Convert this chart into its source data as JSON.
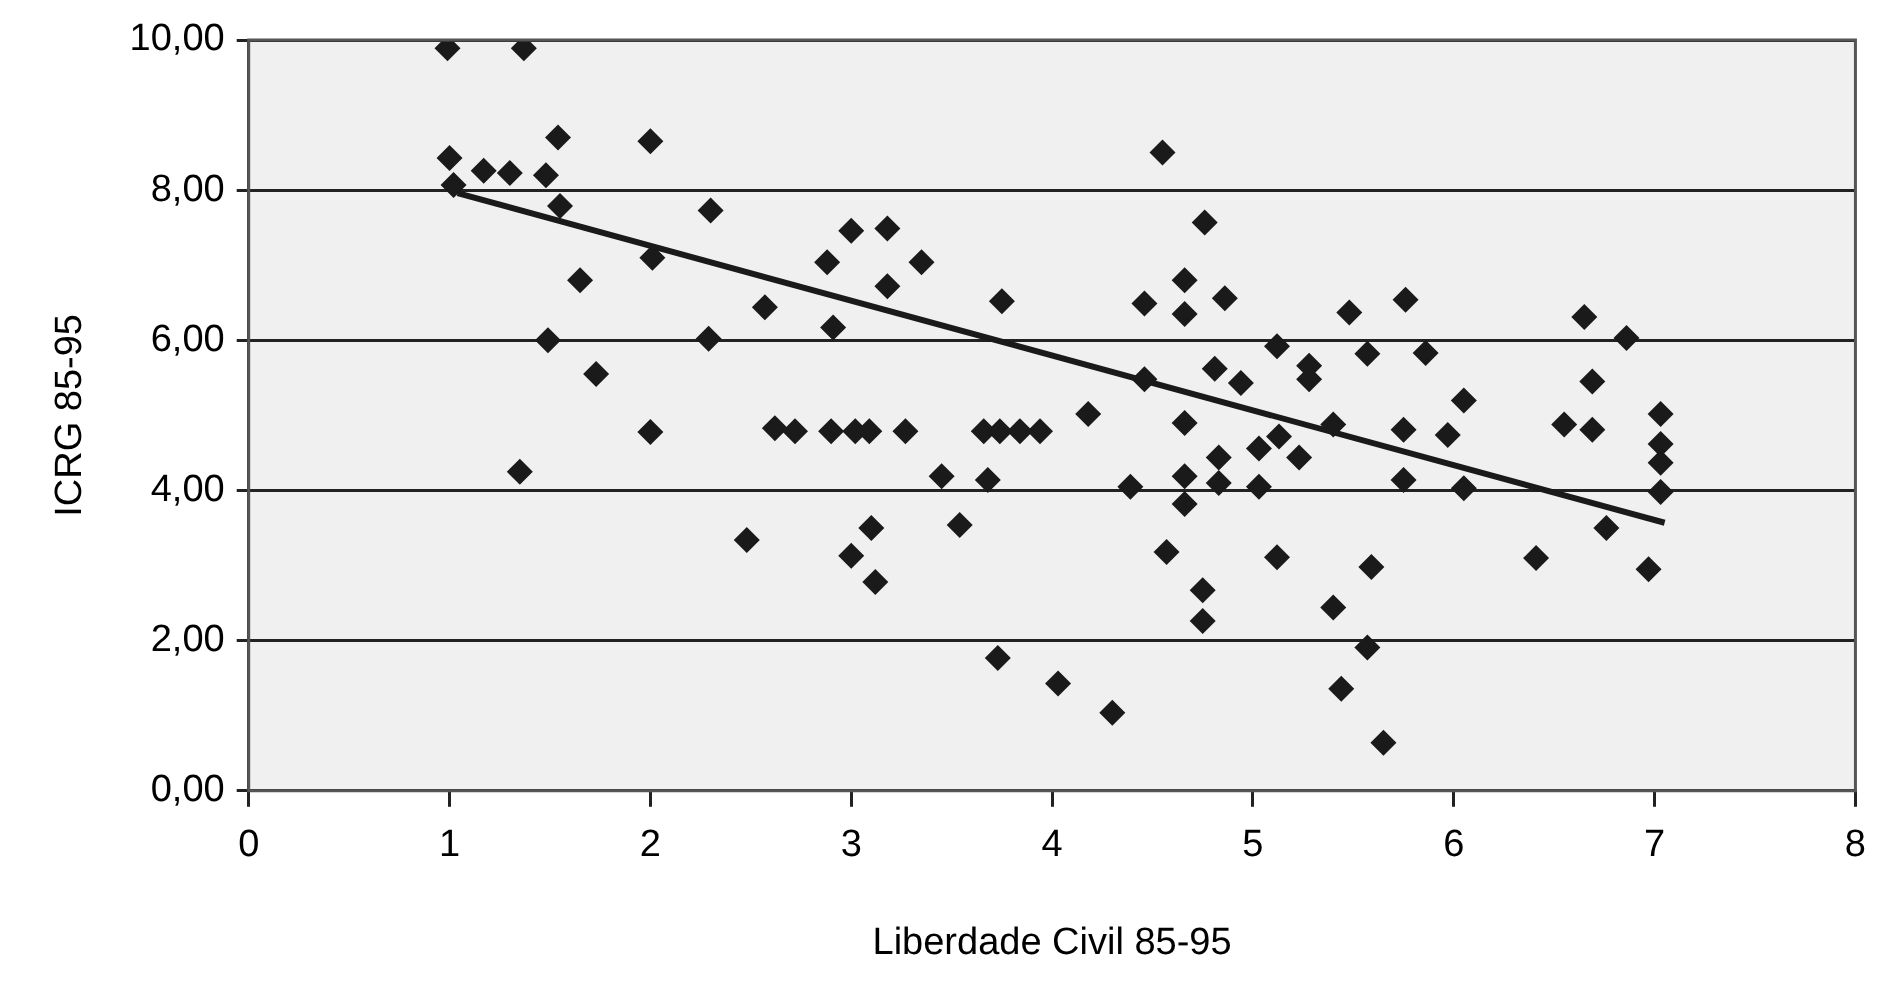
{
  "chart_data": {
    "type": "scatter",
    "xlabel": "Liberdade Civil 85-95",
    "ylabel": "ICRG 85-95",
    "xlim": [
      0,
      8
    ],
    "xticks": [
      0,
      1,
      2,
      3,
      4,
      5,
      6,
      7,
      8
    ],
    "ylim": [
      0,
      10
    ],
    "yticks": [
      {
        "value": 0,
        "label": "0,00"
      },
      {
        "value": 2,
        "label": "2,00"
      },
      {
        "value": 4,
        "label": "4,00"
      },
      {
        "value": 6,
        "label": "6,00"
      },
      {
        "value": 8,
        "label": "8,00"
      },
      {
        "value": 10,
        "label": "10,00"
      }
    ],
    "grid": "y",
    "legend": false,
    "series": [
      {
        "marker": "diamond",
        "color": "#1a1a1a",
        "x": [
          0.99,
          1.37,
          1.54,
          2.0,
          1.0,
          1.17,
          1.3,
          1.48,
          1.02,
          1.55,
          2.3,
          2.01,
          1.65,
          2.57,
          1.49,
          2.29,
          1.73,
          2.0,
          2.62,
          1.35,
          2.48,
          2.72,
          2.9,
          3.02,
          3.09,
          3.27,
          3.66,
          3.74,
          3.84,
          3.94,
          2.88,
          3.0,
          3.18,
          3.35,
          3.18,
          2.91,
          3.75,
          4.55,
          4.76,
          4.46,
          4.66,
          4.66,
          4.86,
          4.46,
          4.81,
          4.94,
          5.12,
          5.28,
          5.28,
          4.18,
          4.66,
          4.83,
          4.66,
          4.83,
          5.03,
          5.13,
          5.23,
          5.03,
          4.39,
          4.66,
          3.45,
          3.68,
          3.1,
          3.0,
          3.12,
          3.54,
          4.57,
          5.12,
          4.75,
          4.75,
          3.73,
          4.03,
          4.3,
          5.48,
          5.76,
          5.57,
          5.86,
          6.05,
          5.4,
          5.75,
          5.97,
          5.75,
          6.05,
          6.65,
          6.86,
          6.69,
          6.55,
          6.69,
          7.03,
          7.03,
          7.03,
          7.03,
          6.76,
          6.41,
          6.97,
          5.59,
          5.4,
          5.57,
          5.44,
          5.65
        ],
        "values": [
          9.89,
          9.89,
          8.7,
          8.65,
          8.43,
          8.26,
          8.23,
          8.2,
          8.07,
          7.79,
          7.73,
          7.1,
          6.8,
          6.44,
          6.0,
          6.02,
          5.55,
          4.78,
          4.83,
          4.25,
          3.34,
          4.79,
          4.79,
          4.79,
          4.79,
          4.79,
          4.79,
          4.79,
          4.79,
          4.79,
          7.04,
          7.46,
          7.49,
          7.04,
          6.72,
          6.17,
          6.52,
          8.5,
          7.57,
          6.49,
          6.8,
          6.35,
          6.56,
          5.48,
          5.62,
          5.43,
          5.92,
          5.66,
          5.48,
          5.02,
          4.9,
          4.44,
          4.19,
          4.1,
          4.56,
          4.72,
          4.44,
          4.05,
          4.05,
          3.82,
          4.19,
          4.14,
          3.5,
          3.13,
          2.78,
          3.54,
          3.18,
          3.11,
          2.67,
          2.26,
          1.77,
          1.43,
          1.04,
          6.37,
          6.54,
          5.82,
          5.83,
          5.2,
          4.88,
          4.81,
          4.74,
          4.14,
          4.03,
          6.31,
          6.03,
          5.45,
          4.88,
          4.81,
          5.02,
          4.62,
          4.37,
          3.98,
          3.5,
          3.1,
          2.95,
          2.98,
          2.44,
          1.91,
          1.36,
          0.64
        ]
      },
      {
        "type": "line",
        "color": "#1a1a1a",
        "x": [
          1.04,
          7.05
        ],
        "values": [
          7.96,
          3.57
        ]
      }
    ]
  }
}
